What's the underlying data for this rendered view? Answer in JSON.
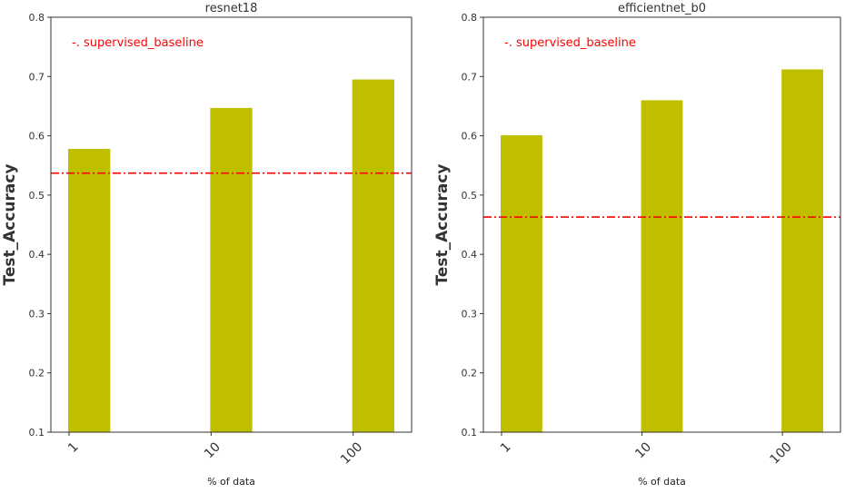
{
  "chart_data": [
    {
      "type": "bar",
      "title": "resnet18",
      "xlabel": "% of data",
      "ylabel": "Test_Accuracy",
      "categories": [
        "1",
        "10",
        "100"
      ],
      "values": [
        0.578,
        0.647,
        0.695
      ],
      "ylim": [
        0.1,
        0.8
      ],
      "yticks": [
        "0.1",
        "0.2",
        "0.3",
        "0.4",
        "0.5",
        "0.6",
        "0.7",
        "0.8"
      ],
      "bar_color": "#bfbf00",
      "baseline": {
        "label": "-. supervised_baseline",
        "value": 0.537,
        "color": "#ff0000",
        "style": "dash-dot"
      },
      "legend_position": "top-left",
      "grid": false
    },
    {
      "type": "bar",
      "title": "efficientnet_b0",
      "xlabel": "% of data",
      "ylabel": "Test_Accuracy",
      "categories": [
        "1",
        "10",
        "100"
      ],
      "values": [
        0.601,
        0.66,
        0.712
      ],
      "ylim": [
        0.1,
        0.8
      ],
      "yticks": [
        "0.1",
        "0.2",
        "0.3",
        "0.4",
        "0.5",
        "0.6",
        "0.7",
        "0.8"
      ],
      "bar_color": "#bfbf00",
      "baseline": {
        "label": "-. supervised_baseline",
        "value": 0.463,
        "color": "#ff0000",
        "style": "dash-dot"
      },
      "legend_position": "top-left",
      "grid": false
    }
  ]
}
